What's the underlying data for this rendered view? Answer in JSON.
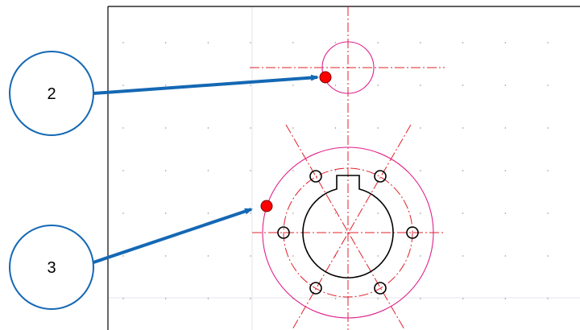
{
  "annotations": [
    {
      "id": "2",
      "label": "2"
    },
    {
      "id": "3",
      "label": "3"
    }
  ],
  "colors": {
    "background": "#ffffff",
    "canvas_border": "#000000",
    "grid_dot": "#7f7f7f",
    "grid_line": "#e6e6ee",
    "centerline": "#e0202a",
    "circle_magenta": "#e0208a",
    "part_outline": "#000000",
    "pick_point": "#ff0000",
    "callout_blue": "#1468b4"
  },
  "icons": {
    "pick_point": "red-dot-marker",
    "callout": "numbered-balloon",
    "arrow": "leader-arrow"
  }
}
